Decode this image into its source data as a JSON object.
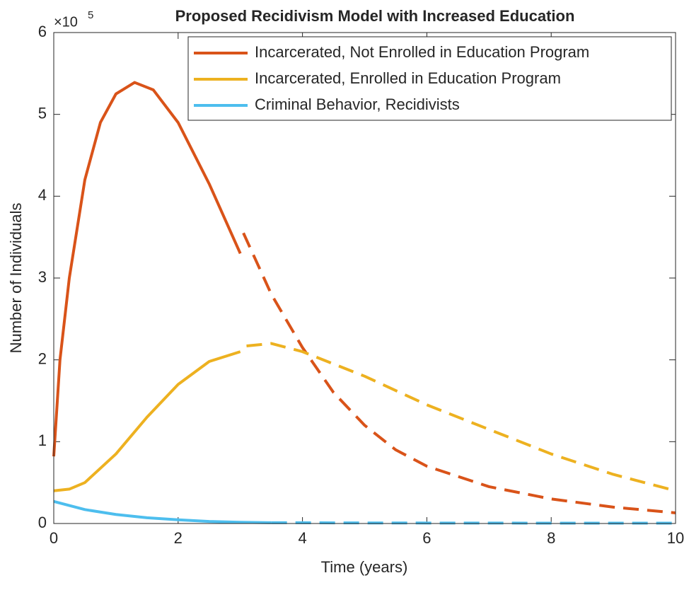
{
  "chart_data": {
    "type": "line",
    "title": "Proposed Recidivism Model with Increased Education",
    "xlabel": "Time (years)",
    "ylabel": "Number of Individuals",
    "y_multiplier": {
      "base": "×10",
      "exponent": "5"
    },
    "xlim": [
      0,
      10
    ],
    "ylim": [
      0,
      6
    ],
    "xticks": [
      0,
      2,
      4,
      6,
      8,
      10
    ],
    "yticks": [
      0,
      1,
      2,
      3,
      4,
      5,
      6
    ],
    "legend": "upper right",
    "series": [
      {
        "name": "Incarcerated, Not Enrolled in Education Program",
        "color": "#d95319",
        "segments": [
          {
            "style": "solid",
            "x": [
              0,
              0.1,
              0.25,
              0.5,
              0.75,
              1.0,
              1.3,
              1.6,
              2.0,
              2.5,
              3.0
            ],
            "values": [
              0.82,
              2.0,
              3.0,
              4.2,
              4.9,
              5.25,
              5.39,
              5.3,
              4.9,
              4.15,
              3.3
            ]
          },
          {
            "style": "dashed",
            "x": [
              3.05,
              3.5,
              4,
              4.5,
              5,
              5.5,
              6,
              7,
              8,
              9,
              10
            ],
            "values": [
              3.55,
              2.8,
              2.15,
              1.6,
              1.2,
              0.9,
              0.7,
              0.45,
              0.3,
              0.2,
              0.13
            ]
          }
        ]
      },
      {
        "name": "Incarcerated, Enrolled in Education Program",
        "color": "#edb120",
        "segments": [
          {
            "style": "solid",
            "x": [
              0,
              0.25,
              0.5,
              1,
              1.5,
              2,
              2.5,
              3
            ],
            "values": [
              0.4,
              0.42,
              0.5,
              0.85,
              1.3,
              1.7,
              1.98,
              2.1
            ]
          },
          {
            "style": "dashed",
            "x": [
              3.1,
              3.5,
              4,
              4.5,
              5,
              6,
              7,
              8,
              9,
              10
            ],
            "values": [
              2.17,
              2.2,
              2.1,
              1.95,
              1.8,
              1.45,
              1.15,
              0.85,
              0.6,
              0.4
            ]
          }
        ]
      },
      {
        "name": "Criminal Behavior, Recidivists",
        "color": "#4dbeee",
        "segments": [
          {
            "style": "solid",
            "x": [
              0,
              0.5,
              1,
              1.5,
              2,
              2.5,
              3,
              3.5
            ],
            "values": [
              0.27,
              0.17,
              0.11,
              0.07,
              0.045,
              0.025,
              0.015,
              0.01
            ]
          },
          {
            "style": "dashed",
            "x": [
              3.5,
              5,
              7,
              10
            ],
            "values": [
              0.01,
              0.007,
              0.005,
              0.004
            ]
          }
        ]
      }
    ]
  }
}
